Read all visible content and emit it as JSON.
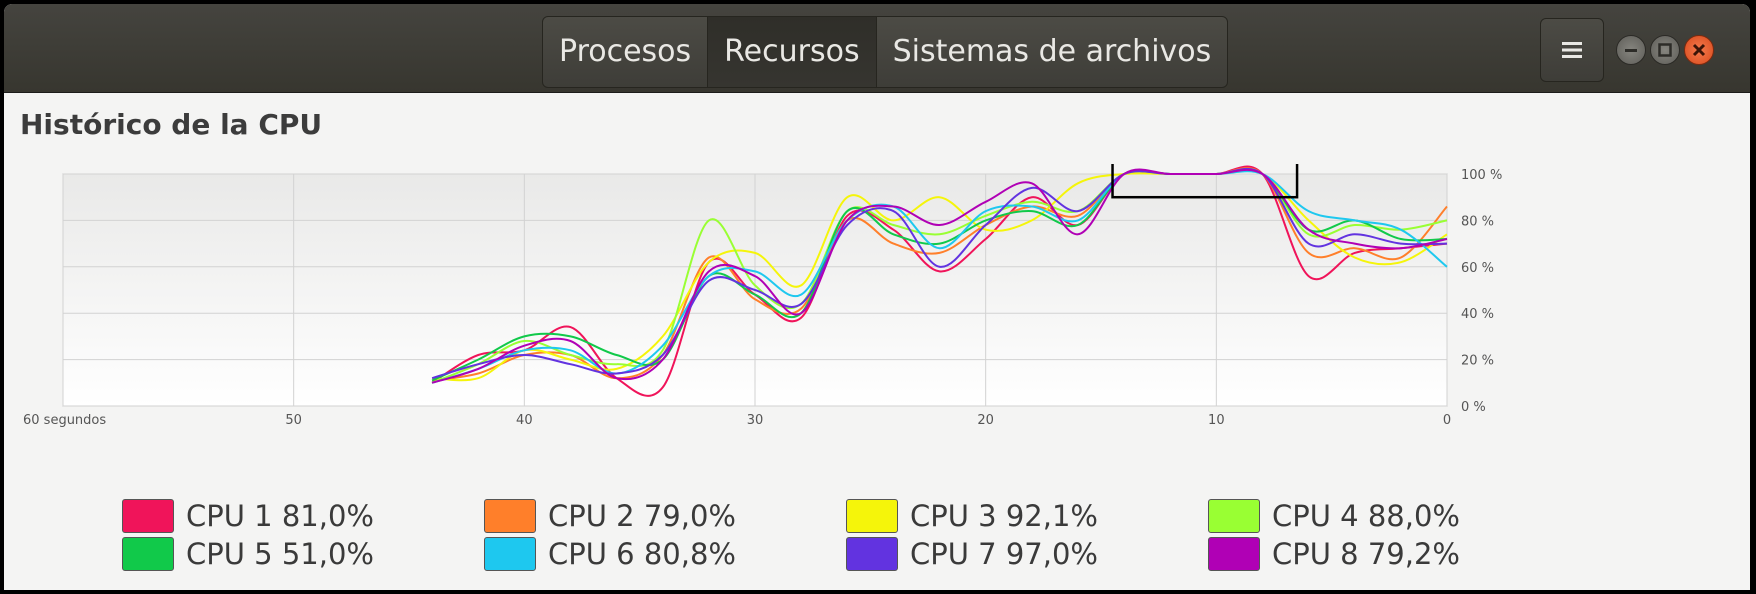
{
  "tabs": [
    {
      "label": "Procesos",
      "active": false
    },
    {
      "label": "Recursos",
      "active": true
    },
    {
      "label": "Sistemas de archivos",
      "active": false
    }
  ],
  "menu_icon": "hamburger-icon",
  "window_buttons": [
    "minimize-icon",
    "maximize-icon",
    "close-icon"
  ],
  "section_title": "Histórico de la CPU",
  "chart_data": {
    "type": "line",
    "xlim": [
      60,
      0
    ],
    "x_ticks": [
      "60 segundos",
      "50",
      "40",
      "30",
      "20",
      "10",
      "0"
    ],
    "ylim": [
      0,
      100
    ],
    "y_ticks": [
      "100 %",
      "80 %",
      "60 %",
      "40 %",
      "20 %",
      "0 %"
    ],
    "grid": true,
    "x": [
      44,
      42,
      40,
      38,
      36,
      34,
      32,
      30,
      28,
      26,
      24,
      22,
      20,
      18,
      16,
      14,
      12,
      10,
      8,
      6,
      4,
      2,
      0
    ],
    "series": [
      {
        "name": "CPU 1",
        "color": "#f0145a",
        "values": [
          10,
          22,
          24,
          34,
          12,
          8,
          62,
          48,
          38,
          82,
          76,
          58,
          72,
          90,
          78,
          100,
          100,
          100,
          100,
          56,
          66,
          68,
          70
        ]
      },
      {
        "name": "CPU 2",
        "color": "#ff7f2a",
        "values": [
          11,
          14,
          22,
          22,
          12,
          22,
          64,
          46,
          42,
          80,
          70,
          66,
          78,
          86,
          82,
          100,
          100,
          100,
          100,
          66,
          68,
          64,
          86
        ]
      },
      {
        "name": "CPU 3",
        "color": "#f5f50a",
        "values": [
          12,
          12,
          24,
          20,
          16,
          30,
          62,
          66,
          52,
          90,
          80,
          90,
          76,
          80,
          96,
          100,
          100,
          100,
          100,
          80,
          64,
          62,
          74
        ]
      },
      {
        "name": "CPU 4",
        "color": "#99ff33",
        "values": [
          10,
          18,
          28,
          22,
          18,
          24,
          80,
          52,
          44,
          84,
          78,
          74,
          82,
          88,
          84,
          100,
          100,
          100,
          100,
          74,
          78,
          76,
          80
        ]
      },
      {
        "name": "CPU 5",
        "color": "#11c94a",
        "values": [
          11,
          20,
          30,
          30,
          22,
          20,
          56,
          48,
          40,
          84,
          74,
          70,
          80,
          84,
          78,
          100,
          100,
          100,
          100,
          76,
          80,
          72,
          72
        ]
      },
      {
        "name": "CPU 6",
        "color": "#1ec8ef",
        "values": [
          10,
          16,
          24,
          24,
          14,
          26,
          56,
          58,
          48,
          80,
          86,
          68,
          84,
          86,
          80,
          100,
          100,
          100,
          100,
          84,
          80,
          76,
          60
        ]
      },
      {
        "name": "CPU 7",
        "color": "#6233e0",
        "values": [
          12,
          18,
          22,
          18,
          14,
          22,
          54,
          50,
          44,
          78,
          84,
          60,
          78,
          94,
          84,
          100,
          100,
          100,
          100,
          70,
          74,
          70,
          70
        ]
      },
      {
        "name": "CPU 8",
        "color": "#b000b5",
        "values": [
          10,
          16,
          26,
          28,
          12,
          20,
          58,
          56,
          40,
          80,
          86,
          78,
          88,
          96,
          74,
          100,
          100,
          100,
          100,
          76,
          70,
          68,
          72
        ]
      }
    ],
    "highlight_box": {
      "x_from": 14.5,
      "x_to": 6.5,
      "y_from": 90,
      "y_to": 109
    }
  },
  "legend": [
    {
      "label": "CPU 1",
      "value": "81,0%",
      "color": "#f0145a"
    },
    {
      "label": "CPU 2",
      "value": "79,0%",
      "color": "#ff7f2a"
    },
    {
      "label": "CPU 3",
      "value": "92,1%",
      "color": "#f5f50a"
    },
    {
      "label": "CPU 4",
      "value": "88,0%",
      "color": "#99ff33"
    },
    {
      "label": "CPU 5",
      "value": "51,0%",
      "color": "#11c94a"
    },
    {
      "label": "CPU 6",
      "value": "80,8%",
      "color": "#1ec8ef"
    },
    {
      "label": "CPU 7",
      "value": "97,0%",
      "color": "#6233e0"
    },
    {
      "label": "CPU 8",
      "value": "79,2%",
      "color": "#b000b5"
    }
  ]
}
